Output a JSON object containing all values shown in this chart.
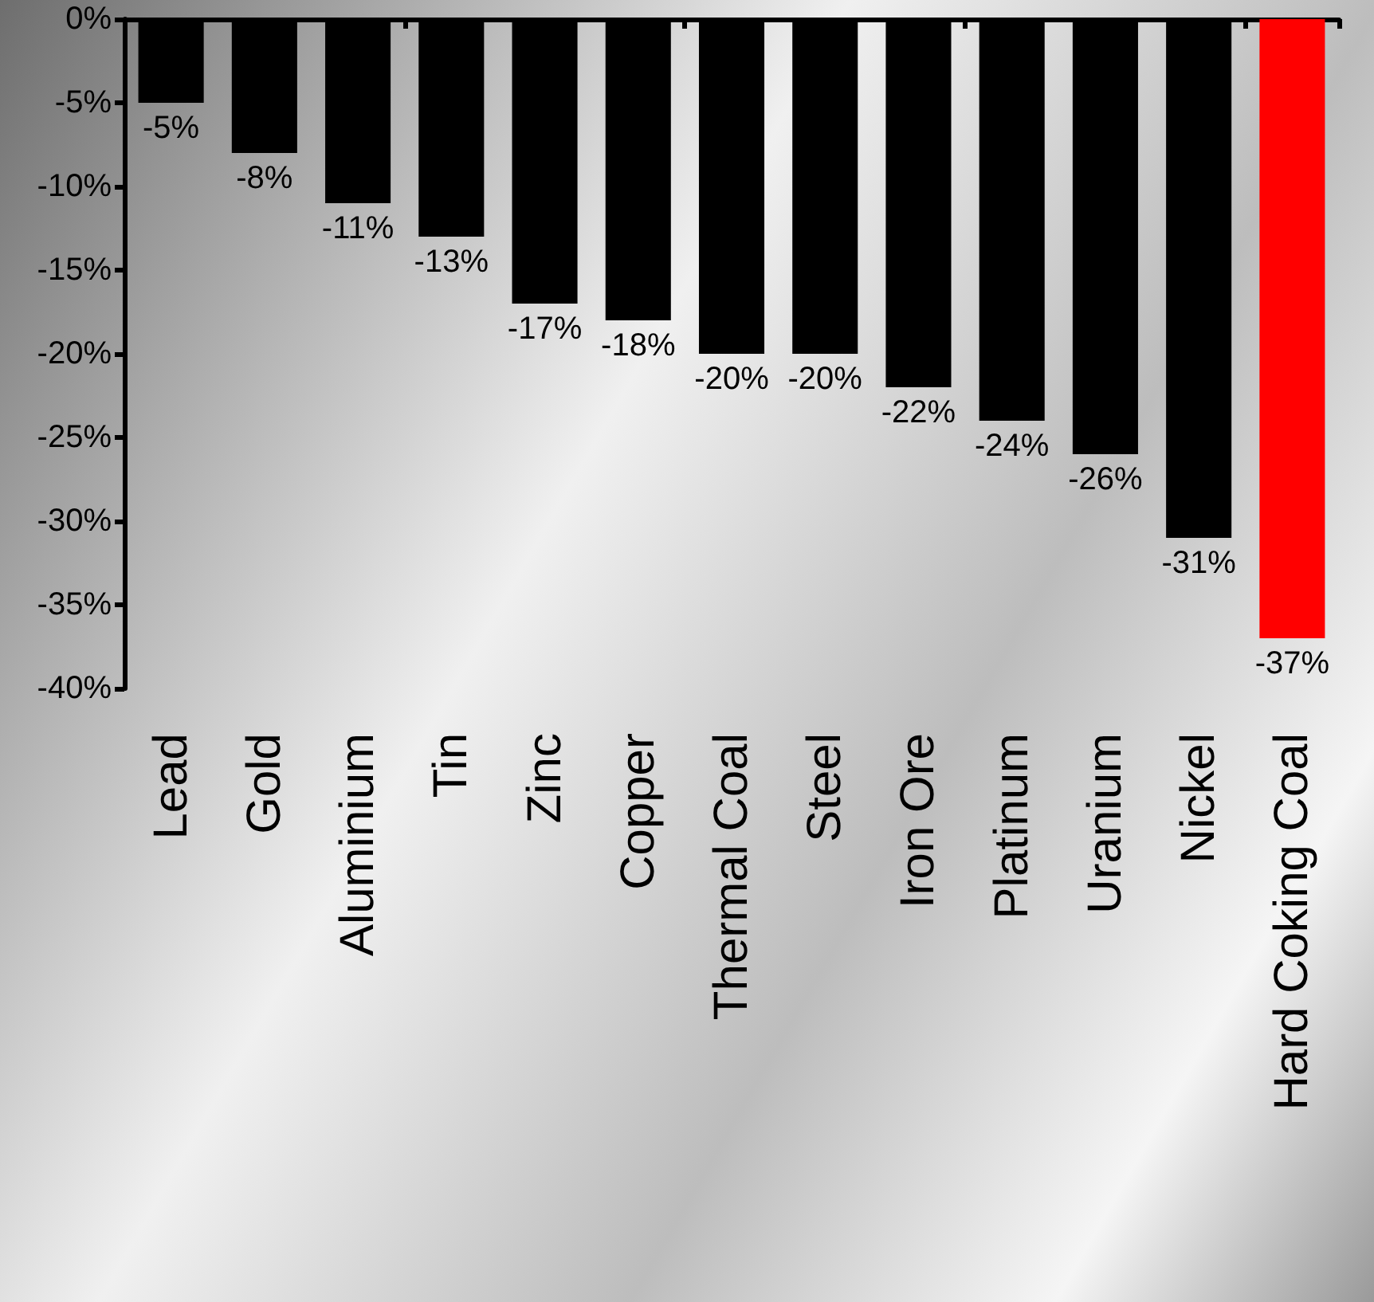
{
  "chart_data": {
    "type": "bar",
    "categories": [
      "Lead",
      "Gold",
      "Aluminium",
      "Tin",
      "Zinc",
      "Copper",
      "Thermal Coal",
      "Steel",
      "Iron Ore",
      "Platinum",
      "Uranium",
      "Nickel",
      "Hard Coking Coal"
    ],
    "values": [
      -5,
      -8,
      -11,
      -13,
      -17,
      -18,
      -20,
      -20,
      -22,
      -24,
      -26,
      -31,
      -37
    ],
    "colors": [
      "#000000",
      "#000000",
      "#000000",
      "#000000",
      "#000000",
      "#000000",
      "#000000",
      "#000000",
      "#000000",
      "#000000",
      "#000000",
      "#000000",
      "#ff0000"
    ],
    "value_labels": [
      "-5%",
      "-8%",
      "-11%",
      "-13%",
      "-17%",
      "-18%",
      "-20%",
      "-20%",
      "-22%",
      "-24%",
      "-26%",
      "-31%",
      "-37%"
    ],
    "ylim": [
      -40,
      0
    ],
    "yticks": [
      {
        "value": 0,
        "label": "0%"
      },
      {
        "value": -5,
        "label": "-5%"
      },
      {
        "value": -10,
        "label": "-10%"
      },
      {
        "value": -15,
        "label": "-15%"
      },
      {
        "value": -20,
        "label": "-20%"
      },
      {
        "value": -25,
        "label": "-25%"
      },
      {
        "value": -30,
        "label": "-30%"
      },
      {
        "value": -35,
        "label": "-35%"
      },
      {
        "value": -40,
        "label": "-40%"
      }
    ],
    "grid": false
  }
}
